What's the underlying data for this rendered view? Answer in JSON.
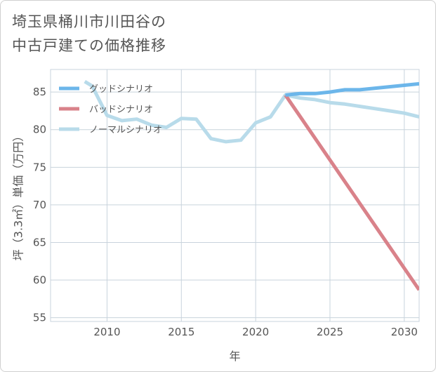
{
  "title": {
    "line1": "埼玉県桶川市川田谷の",
    "line2": "中古戸建ての価格推移"
  },
  "chart_data": {
    "type": "line",
    "title": "埼玉県桶川市川田谷の中古戸建ての価格推移",
    "xlabel": "年",
    "ylabel": "坪（3.3㎡）単価（万円）",
    "xlim": [
      2006.2,
      2031
    ],
    "ylim": [
      54.5,
      88
    ],
    "xticks": [
      2010,
      2015,
      2020,
      2025,
      2030
    ],
    "yticks": [
      55,
      60,
      65,
      70,
      75,
      80,
      85
    ],
    "grid": true,
    "legend_position": "top-left",
    "series": [
      {
        "name": "グッドシナリオ",
        "color": "#6cb6ea",
        "x": [
          2022,
          2023,
          2024,
          2025,
          2026,
          2027,
          2028,
          2029,
          2030,
          2031
        ],
        "y": [
          84.6,
          84.8,
          84.8,
          85.0,
          85.3,
          85.3,
          85.5,
          85.7,
          85.9,
          86.1
        ]
      },
      {
        "name": "バッドシナリオ",
        "color": "#d9828a",
        "x": [
          2022,
          2031
        ],
        "y": [
          84.6,
          58.7
        ]
      },
      {
        "name": "ノーマルシナリオ",
        "color": "#b8dbea",
        "x": [
          2008.5,
          2009,
          2010,
          2011,
          2012,
          2013,
          2014,
          2015,
          2016,
          2017,
          2018,
          2019,
          2020,
          2021,
          2022,
          2023,
          2024,
          2025,
          2026,
          2027,
          2028,
          2029,
          2030,
          2031
        ],
        "y": [
          86.4,
          85.8,
          81.9,
          81.2,
          81.4,
          80.6,
          80.3,
          81.5,
          81.4,
          78.8,
          78.4,
          78.6,
          80.9,
          81.7,
          84.6,
          84.2,
          84.0,
          83.6,
          83.4,
          83.1,
          82.8,
          82.5,
          82.2,
          81.7
        ]
      }
    ]
  }
}
